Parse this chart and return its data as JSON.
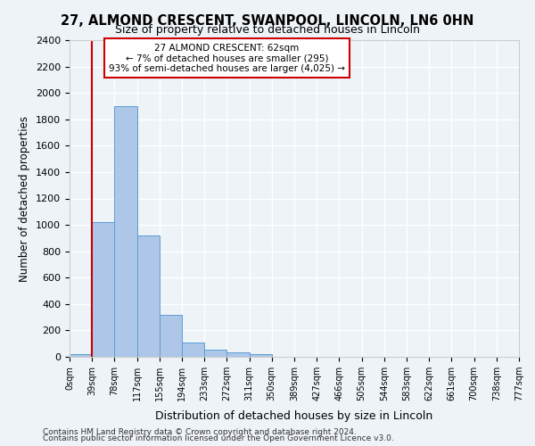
{
  "title_line1": "27, ALMOND CRESCENT, SWANPOOL, LINCOLN, LN6 0HN",
  "title_line2": "Size of property relative to detached houses in Lincoln",
  "xlabel": "Distribution of detached houses by size in Lincoln",
  "ylabel": "Number of detached properties",
  "footer_line1": "Contains HM Land Registry data © Crown copyright and database right 2024.",
  "footer_line2": "Contains public sector information licensed under the Open Government Licence v3.0.",
  "bin_labels": [
    "0sqm",
    "39sqm",
    "78sqm",
    "117sqm",
    "155sqm",
    "194sqm",
    "233sqm",
    "272sqm",
    "311sqm",
    "350sqm",
    "389sqm",
    "427sqm",
    "466sqm",
    "505sqm",
    "544sqm",
    "583sqm",
    "622sqm",
    "661sqm",
    "700sqm",
    "738sqm",
    "777sqm"
  ],
  "bar_heights": [
    20,
    1020,
    1900,
    920,
    315,
    110,
    55,
    35,
    20,
    0,
    0,
    0,
    0,
    0,
    0,
    0,
    0,
    0,
    0,
    0
  ],
  "bar_color": "#aec6e8",
  "bar_edge_color": "#5a9fd4",
  "ylim": [
    0,
    2400
  ],
  "yticks": [
    0,
    200,
    400,
    600,
    800,
    1000,
    1200,
    1400,
    1600,
    1800,
    2000,
    2200,
    2400
  ],
  "property_line_x": 1.0,
  "property_line_color": "#cc0000",
  "annotation_text": "27 ALMOND CRESCENT: 62sqm\n← 7% of detached houses are smaller (295)\n93% of semi-detached houses are larger (4,025) →",
  "annotation_box_color": "#ffffff",
  "annotation_box_edge_color": "#cc0000",
  "bg_color": "#eef3f8",
  "plot_bg_color": "#eef3f8",
  "grid_color": "#ffffff"
}
